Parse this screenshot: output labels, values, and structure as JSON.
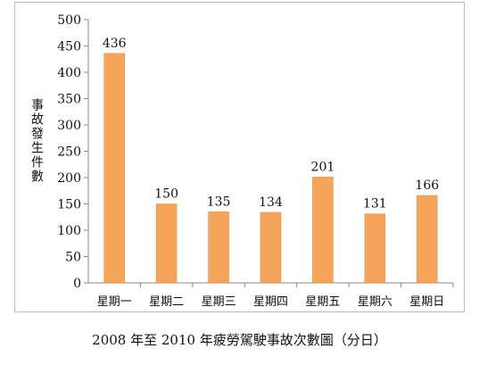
{
  "chart_data": {
    "type": "bar",
    "categories": [
      "星期一",
      "星期二",
      "星期三",
      "星期四",
      "星期五",
      "星期六",
      "星期日"
    ],
    "values": [
      436,
      150,
      135,
      134,
      201,
      131,
      166
    ],
    "data_labels": [
      "436",
      "150",
      "135",
      "134",
      "201",
      "131",
      "166"
    ],
    "ylabel": "事故發生件數",
    "caption": "2008 年至 2010 年疲勞駕駛事故次數圖（分日）",
    "ylim": [
      0,
      500
    ],
    "yticks": [
      0,
      50,
      100,
      150,
      200,
      250,
      300,
      350,
      400,
      450,
      500
    ],
    "grid": false,
    "legend": "none",
    "colors": {
      "bar": "#F5A55A",
      "bar_edge": "#E8893A",
      "axis": "#888888"
    }
  }
}
